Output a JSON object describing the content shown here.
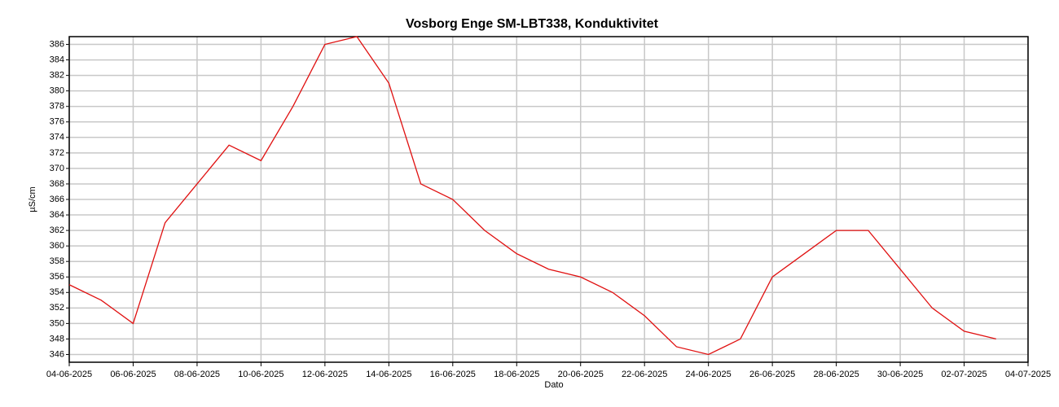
{
  "chart_data": {
    "type": "line",
    "title": "Vosborg Enge SM-LBT338, Konduktivitet",
    "x_label": "Dato",
    "y_label": "µS/cm",
    "x": [
      "04-06-2025",
      "05-06-2025",
      "06-06-2025",
      "07-06-2025",
      "08-06-2025",
      "09-06-2025",
      "10-06-2025",
      "11-06-2025",
      "12-06-2025",
      "13-06-2025",
      "14-06-2025",
      "15-06-2025",
      "16-06-2025",
      "17-06-2025",
      "18-06-2025",
      "19-06-2025",
      "20-06-2025",
      "21-06-2025",
      "22-06-2025",
      "23-06-2025",
      "24-06-2025",
      "25-06-2025",
      "26-06-2025",
      "27-06-2025",
      "28-06-2025",
      "29-06-2025",
      "30-06-2025",
      "01-07-2025",
      "02-07-2025",
      "03-07-2025"
    ],
    "series": [
      {
        "name": "Konduktivitet",
        "color": "#e01010",
        "values": [
          355,
          353,
          350,
          363,
          368,
          373,
          371,
          378,
          386,
          387,
          381,
          368,
          366,
          362,
          359,
          357,
          356,
          354,
          351,
          347,
          346,
          348,
          356,
          359,
          362,
          362,
          357,
          352,
          349,
          348
        ]
      }
    ],
    "xlim": [
      "04-06-2025",
      "04-07-2025"
    ],
    "xticks": [
      "04-06-2025",
      "06-06-2025",
      "08-06-2025",
      "10-06-2025",
      "12-06-2025",
      "14-06-2025",
      "16-06-2025",
      "18-06-2025",
      "20-06-2025",
      "22-06-2025",
      "24-06-2025",
      "26-06-2025",
      "28-06-2025",
      "30-06-2025",
      "02-07-2025",
      "04-07-2025"
    ],
    "ylim": [
      345,
      387
    ],
    "yticks": [
      346,
      348,
      350,
      352,
      354,
      356,
      358,
      360,
      362,
      364,
      366,
      368,
      370,
      372,
      374,
      376,
      378,
      380,
      382,
      384,
      386
    ],
    "grid": true
  }
}
